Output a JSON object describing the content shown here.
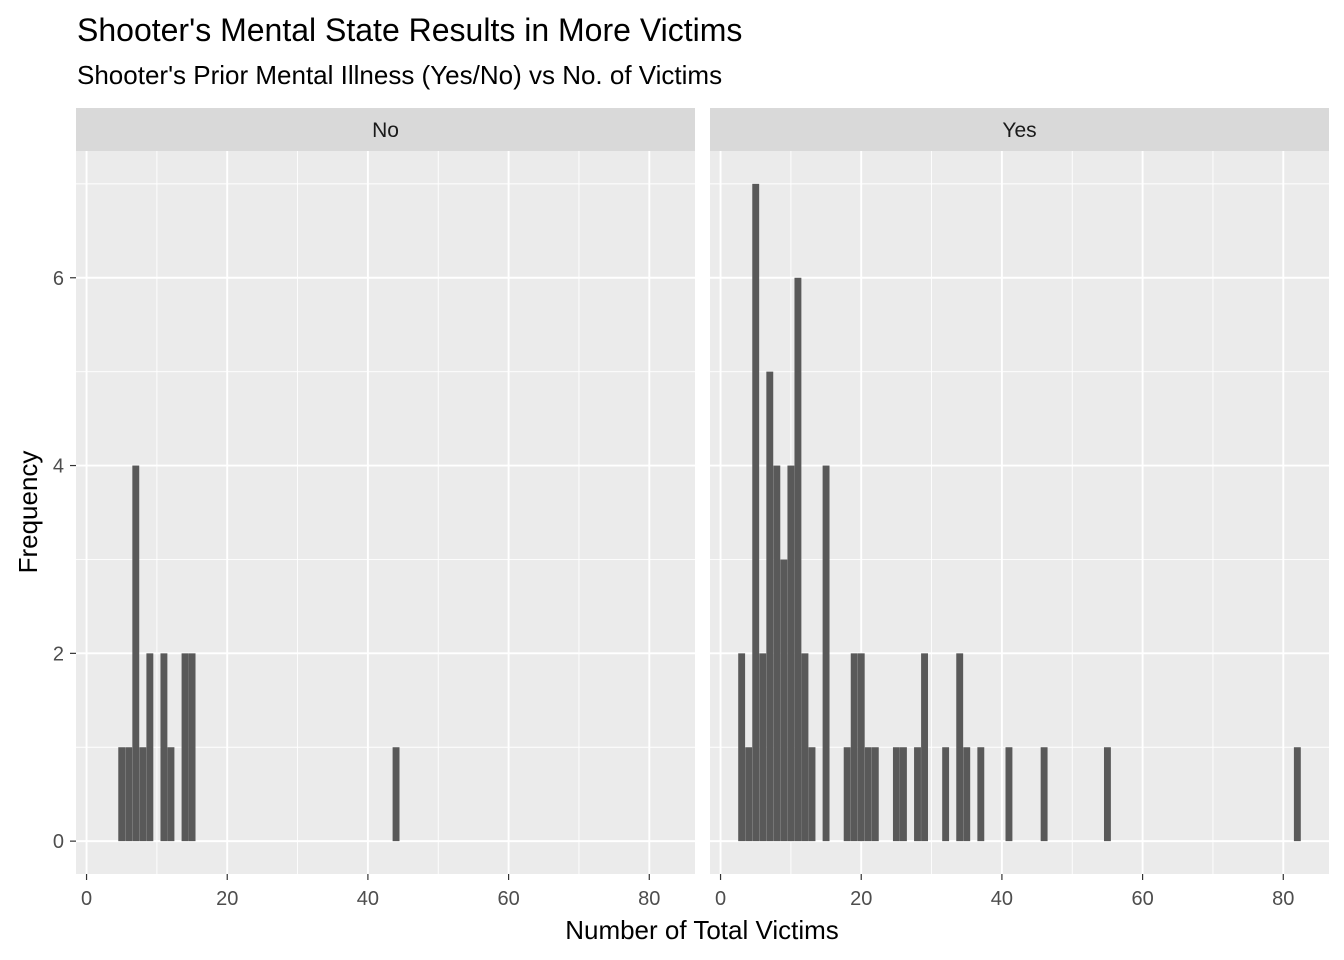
{
  "chart_data": {
    "type": "bar",
    "title": "Shooter's Mental State Results in More Victims",
    "subtitle": "Shooter's Prior Mental Illness (Yes/No) vs No. of Victims",
    "xlabel": "Number of Total Victims",
    "ylabel": "Frequency",
    "xlim": [
      -1.5,
      86.5
    ],
    "ylim": [
      -0.35,
      7.35
    ],
    "x_ticks": [
      0,
      20,
      40,
      60,
      80
    ],
    "x_tick_labels": [
      "0",
      "20",
      "40",
      "60",
      "80"
    ],
    "y_ticks": [
      0,
      2,
      4,
      6
    ],
    "y_tick_labels": [
      "0",
      "2",
      "4",
      "6"
    ],
    "grid": true,
    "bar_color": "#595959",
    "panel_background": "#ebebeb",
    "strip_background": "#d9d9d9",
    "grid_color": "#ffffff",
    "facets": [
      {
        "label": "No",
        "x": [
          5,
          6,
          7,
          8,
          9,
          11,
          12,
          14,
          15,
          44
        ],
        "values": [
          1,
          1,
          4,
          1,
          2,
          2,
          1,
          2,
          2,
          1
        ]
      },
      {
        "label": "Yes",
        "x": [
          3,
          4,
          5,
          6,
          7,
          8,
          9,
          10,
          11,
          12,
          13,
          15,
          18,
          19,
          20,
          21,
          22,
          25,
          26,
          28,
          29,
          32,
          34,
          35,
          37,
          41,
          46,
          55,
          82
        ],
        "values": [
          2,
          1,
          7,
          2,
          5,
          4,
          3,
          4,
          6,
          2,
          1,
          4,
          1,
          2,
          2,
          1,
          1,
          1,
          1,
          1,
          2,
          1,
          2,
          1,
          1,
          1,
          1,
          1,
          1
        ]
      }
    ]
  }
}
